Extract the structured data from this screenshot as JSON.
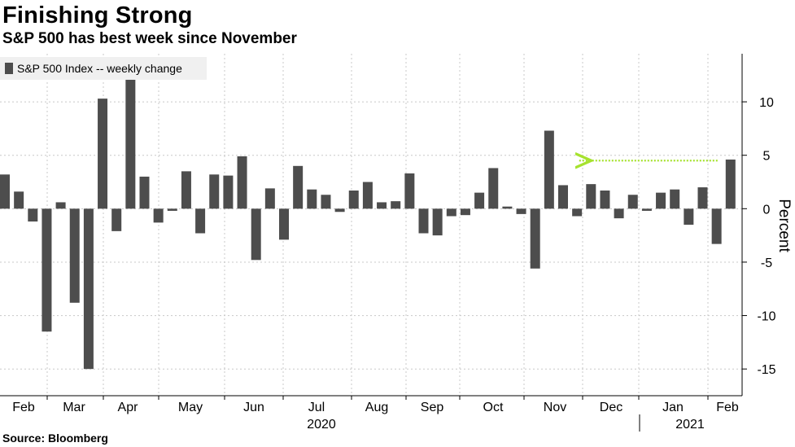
{
  "header": {
    "title": "Finishing Strong",
    "subtitle": "S&P 500 has best week since November"
  },
  "footer": {
    "source": "Source: Bloomberg"
  },
  "colors": {
    "bar": "#4d4d4d",
    "grid": "#c8c8c8",
    "axis": "#000000",
    "legend_bg": "#f0f0f0",
    "annotation": "#a6e22e"
  },
  "chart_data": {
    "type": "bar",
    "title": "Finishing Strong",
    "subtitle": "S&P 500 has best week since November",
    "xlabel": "",
    "ylabel": "Percent",
    "ylim": [
      -17.5,
      14.5
    ],
    "yticks": [
      10,
      5,
      0,
      -5,
      -10,
      -15
    ],
    "legend": {
      "label": "S&P 500 Index -- weekly change",
      "position": "top-left"
    },
    "series": [
      {
        "name": "S&P 500 Index -- weekly change",
        "values": [
          3.2,
          1.6,
          -1.2,
          -11.5,
          0.6,
          -8.8,
          -15.0,
          10.3,
          -2.1,
          12.1,
          3.0,
          -1.3,
          -0.2,
          3.5,
          -2.3,
          3.2,
          3.1,
          4.9,
          -4.8,
          1.9,
          -2.9,
          4.0,
          1.8,
          1.3,
          -0.3,
          1.7,
          2.5,
          0.6,
          0.7,
          3.3,
          -2.3,
          -2.5,
          -0.7,
          -0.6,
          1.5,
          3.8,
          0.2,
          -0.5,
          -5.6,
          7.3,
          2.2,
          -0.7,
          2.3,
          1.7,
          -0.9,
          1.3,
          -0.2,
          1.5,
          1.8,
          -1.5,
          2.0,
          -3.3,
          4.6
        ]
      }
    ],
    "month_labels": [
      "Feb",
      "Mar",
      "Apr",
      "May",
      "Jun",
      "Jul",
      "Aug",
      "Sep",
      "Oct",
      "Nov",
      "Dec",
      "Jan",
      "Feb"
    ],
    "year_labels": [
      "2020",
      "2021"
    ],
    "grid": true,
    "annotation": {
      "type": "arrow",
      "from_index": 52,
      "to_index": 41,
      "value": 4.5,
      "direction": "left"
    }
  }
}
